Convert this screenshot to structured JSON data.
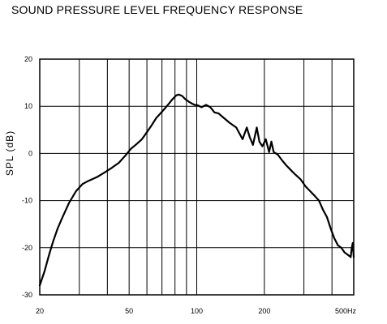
{
  "chart_data": {
    "type": "line",
    "title": "SOUND PRESSURE LEVEL FREQUENCY RESPONSE",
    "xlabel": "",
    "ylabel": "SPL (dB)",
    "x_scale": "log",
    "xlim": [
      20,
      500
    ],
    "ylim": [
      -30,
      20
    ],
    "grid": true,
    "x_tick_labels": [
      {
        "value": 20,
        "label": "20"
      },
      {
        "value": 50,
        "label": "50"
      },
      {
        "value": 100,
        "label": "100"
      },
      {
        "value": 200,
        "label": "200"
      },
      {
        "value": 500,
        "label": "500Hz"
      }
    ],
    "y_ticks": [
      20,
      10,
      0,
      -10,
      -20,
      -30
    ],
    "x_gridlines": [
      20,
      30,
      40,
      50,
      60,
      70,
      80,
      90,
      100,
      200,
      300,
      400,
      500
    ],
    "series": [
      {
        "x": [
          20,
          21,
          22,
          23,
          24,
          25,
          27,
          29,
          31,
          33,
          36,
          39,
          42,
          45,
          48,
          51,
          54,
          57,
          60,
          63,
          66,
          69,
          72,
          75,
          78,
          81,
          83,
          86,
          89,
          92,
          95,
          98,
          101,
          105,
          110,
          115,
          120,
          125,
          130,
          140,
          150,
          160,
          167,
          172,
          178,
          185,
          190,
          196,
          203,
          210,
          215,
          220,
          230,
          240,
          250,
          262,
          275,
          290,
          305,
          320,
          335,
          350,
          365,
          380,
          395,
          410,
          425,
          440,
          455,
          470,
          485,
          490,
          495,
          500
        ],
        "y": [
          -28,
          -25,
          -21.5,
          -18.5,
          -16,
          -14,
          -10.5,
          -8,
          -6.5,
          -5.8,
          -5,
          -4,
          -3,
          -2,
          -0.5,
          1,
          2,
          3,
          4.5,
          6,
          7.5,
          8.5,
          9.5,
          10.5,
          11.5,
          12.3,
          12.5,
          12.2,
          11.5,
          11,
          10.6,
          10.3,
          10.2,
          9.8,
          10.3,
          9.8,
          8.7,
          8.5,
          7.8,
          6.5,
          5.5,
          3,
          5.5,
          3.5,
          1.8,
          5.5,
          2.5,
          1.5,
          3,
          0.3,
          2.5,
          0.3,
          -0.3,
          -1.5,
          -2.5,
          -3.5,
          -4.5,
          -5.5,
          -7,
          -8,
          -9,
          -10,
          -12,
          -13.5,
          -16,
          -18,
          -19.5,
          -20,
          -21,
          -21.5,
          -22,
          -20,
          -19,
          -22
        ]
      }
    ]
  }
}
